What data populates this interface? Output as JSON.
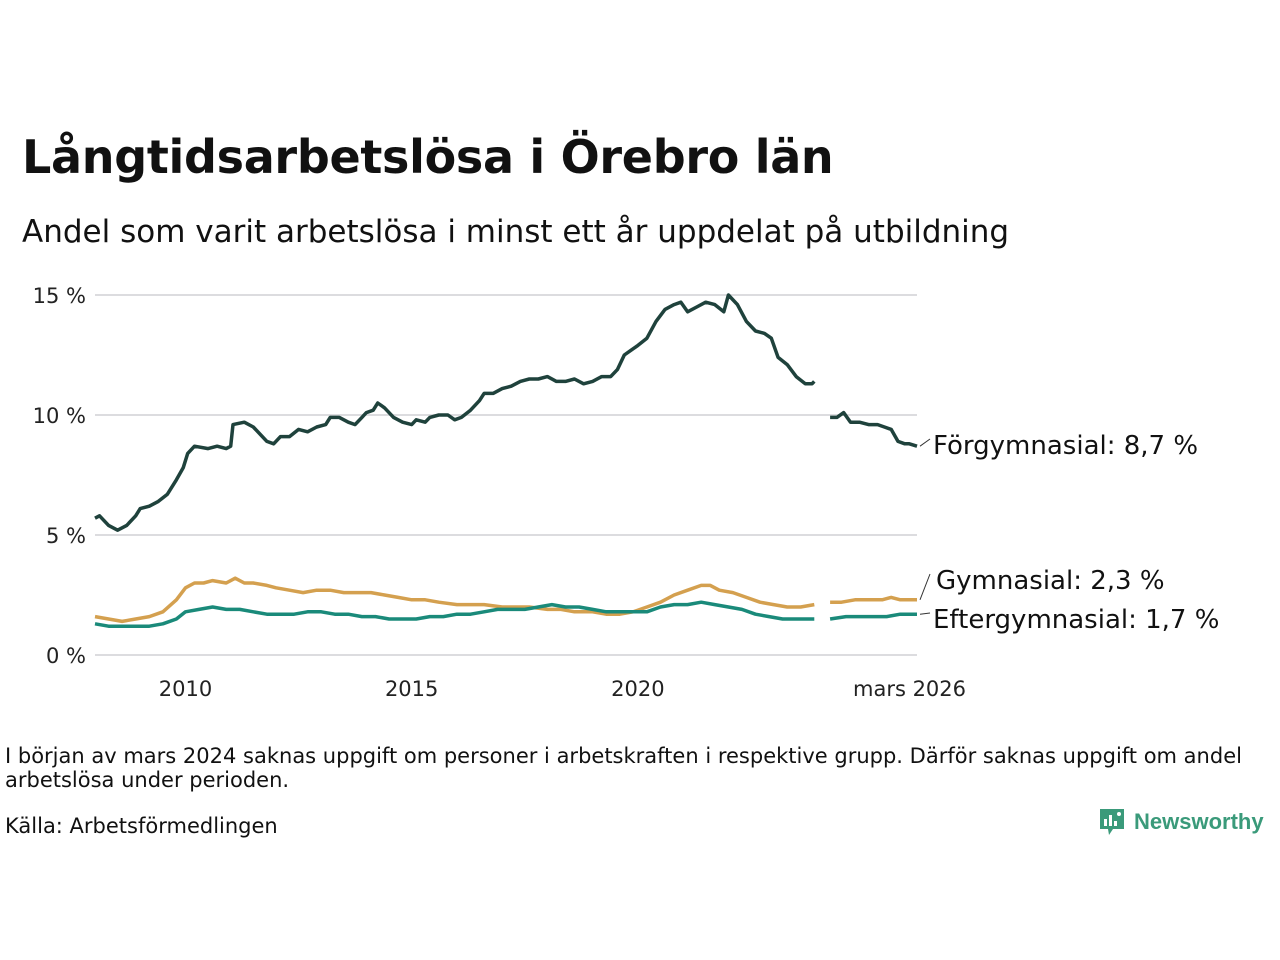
{
  "title": "Långtidsarbetslösa i Örebro län",
  "subtitle": "Andel som varit arbetslösa i minst ett år uppdelat på utbildning",
  "note": "I början av mars 2024 saknas uppgift om personer i arbetskraften i respektive grupp. Därför saknas uppgift om andel arbetslösa under perioden.",
  "source": "Källa: Arbetsförmedlingen",
  "brand": "Newsworthy",
  "chart_data": {
    "type": "line",
    "title": "Långtidsarbetslösa i Örebro län",
    "xlabel": "",
    "ylabel": "",
    "ylim": [
      0,
      15
    ],
    "xlim": [
      2008.0,
      2026.17
    ],
    "yticks": [
      0,
      5,
      10,
      15
    ],
    "ytick_labels": [
      "0 %",
      "5 %",
      "10 %",
      "15 %"
    ],
    "xticks": [
      2010,
      2015,
      2020,
      2026.17
    ],
    "xtick_labels": [
      "2010",
      "2015",
      "2020",
      "mars 2026"
    ],
    "grid": true,
    "gap": [
      2023.9,
      2024.25
    ],
    "series": [
      {
        "name": "Förgymnasial",
        "label": "Förgymnasial: 8,7 %",
        "color": "#1f423c",
        "points": [
          [
            2008.0,
            5.7
          ],
          [
            2008.1,
            5.8
          ],
          [
            2008.3,
            5.4
          ],
          [
            2008.5,
            5.2
          ],
          [
            2008.7,
            5.4
          ],
          [
            2008.9,
            5.8
          ],
          [
            2009.0,
            6.1
          ],
          [
            2009.2,
            6.2
          ],
          [
            2009.4,
            6.4
          ],
          [
            2009.6,
            6.7
          ],
          [
            2009.8,
            7.3
          ],
          [
            2009.95,
            7.8
          ],
          [
            2010.05,
            8.4
          ],
          [
            2010.2,
            8.7
          ],
          [
            2010.5,
            8.6
          ],
          [
            2010.7,
            8.7
          ],
          [
            2010.9,
            8.6
          ],
          [
            2011.0,
            8.7
          ],
          [
            2011.05,
            9.6
          ],
          [
            2011.3,
            9.7
          ],
          [
            2011.5,
            9.5
          ],
          [
            2011.8,
            8.9
          ],
          [
            2011.95,
            8.8
          ],
          [
            2012.1,
            9.1
          ],
          [
            2012.3,
            9.1
          ],
          [
            2012.5,
            9.4
          ],
          [
            2012.7,
            9.3
          ],
          [
            2012.9,
            9.5
          ],
          [
            2013.1,
            9.6
          ],
          [
            2013.2,
            9.9
          ],
          [
            2013.4,
            9.9
          ],
          [
            2013.6,
            9.7
          ],
          [
            2013.75,
            9.6
          ],
          [
            2013.9,
            9.9
          ],
          [
            2014.0,
            10.1
          ],
          [
            2014.15,
            10.2
          ],
          [
            2014.25,
            10.5
          ],
          [
            2014.4,
            10.3
          ],
          [
            2014.6,
            9.9
          ],
          [
            2014.8,
            9.7
          ],
          [
            2015.0,
            9.6
          ],
          [
            2015.1,
            9.8
          ],
          [
            2015.3,
            9.7
          ],
          [
            2015.4,
            9.9
          ],
          [
            2015.6,
            10.0
          ],
          [
            2015.8,
            10.0
          ],
          [
            2015.95,
            9.8
          ],
          [
            2016.1,
            9.9
          ],
          [
            2016.3,
            10.2
          ],
          [
            2016.5,
            10.6
          ],
          [
            2016.6,
            10.9
          ],
          [
            2016.8,
            10.9
          ],
          [
            2017.0,
            11.1
          ],
          [
            2017.2,
            11.2
          ],
          [
            2017.4,
            11.4
          ],
          [
            2017.6,
            11.5
          ],
          [
            2017.8,
            11.5
          ],
          [
            2018.0,
            11.6
          ],
          [
            2018.2,
            11.4
          ],
          [
            2018.4,
            11.4
          ],
          [
            2018.6,
            11.5
          ],
          [
            2018.8,
            11.3
          ],
          [
            2019.0,
            11.4
          ],
          [
            2019.2,
            11.6
          ],
          [
            2019.4,
            11.6
          ],
          [
            2019.55,
            11.9
          ],
          [
            2019.7,
            12.5
          ],
          [
            2019.85,
            12.7
          ],
          [
            2020.0,
            12.9
          ],
          [
            2020.2,
            13.2
          ],
          [
            2020.4,
            13.9
          ],
          [
            2020.6,
            14.4
          ],
          [
            2020.8,
            14.6
          ],
          [
            2020.95,
            14.7
          ],
          [
            2021.1,
            14.3
          ],
          [
            2021.3,
            14.5
          ],
          [
            2021.5,
            14.7
          ],
          [
            2021.7,
            14.6
          ],
          [
            2021.9,
            14.3
          ],
          [
            2022.0,
            15.0
          ],
          [
            2022.2,
            14.6
          ],
          [
            2022.4,
            13.9
          ],
          [
            2022.6,
            13.5
          ],
          [
            2022.8,
            13.4
          ],
          [
            2022.95,
            13.2
          ],
          [
            2023.1,
            12.4
          ],
          [
            2023.3,
            12.1
          ],
          [
            2023.5,
            11.6
          ],
          [
            2023.7,
            11.3
          ],
          [
            2023.85,
            11.3
          ],
          [
            2023.9,
            11.4
          ],
          [
            null,
            null
          ],
          [
            2024.25,
            9.9
          ],
          [
            2024.4,
            9.9
          ],
          [
            2024.55,
            10.1
          ],
          [
            2024.7,
            9.7
          ],
          [
            2024.9,
            9.7
          ],
          [
            2025.1,
            9.6
          ],
          [
            2025.3,
            9.6
          ],
          [
            2025.45,
            9.5
          ],
          [
            2025.6,
            9.4
          ],
          [
            2025.75,
            8.9
          ],
          [
            2025.9,
            8.8
          ],
          [
            2026.0,
            8.8
          ],
          [
            2026.17,
            8.7
          ]
        ]
      },
      {
        "name": "Gymnasial",
        "label": "Gymnasial: 2,3 %",
        "color": "#d4a04f",
        "points": [
          [
            2008.0,
            1.6
          ],
          [
            2008.3,
            1.5
          ],
          [
            2008.6,
            1.4
          ],
          [
            2008.9,
            1.5
          ],
          [
            2009.2,
            1.6
          ],
          [
            2009.5,
            1.8
          ],
          [
            2009.8,
            2.3
          ],
          [
            2010.0,
            2.8
          ],
          [
            2010.2,
            3.0
          ],
          [
            2010.4,
            3.0
          ],
          [
            2010.6,
            3.1
          ],
          [
            2010.9,
            3.0
          ],
          [
            2011.1,
            3.2
          ],
          [
            2011.3,
            3.0
          ],
          [
            2011.5,
            3.0
          ],
          [
            2011.8,
            2.9
          ],
          [
            2012.0,
            2.8
          ],
          [
            2012.3,
            2.7
          ],
          [
            2012.6,
            2.6
          ],
          [
            2012.9,
            2.7
          ],
          [
            2013.2,
            2.7
          ],
          [
            2013.5,
            2.6
          ],
          [
            2013.8,
            2.6
          ],
          [
            2014.1,
            2.6
          ],
          [
            2014.4,
            2.5
          ],
          [
            2014.7,
            2.4
          ],
          [
            2015.0,
            2.3
          ],
          [
            2015.3,
            2.3
          ],
          [
            2015.6,
            2.2
          ],
          [
            2016.0,
            2.1
          ],
          [
            2016.3,
            2.1
          ],
          [
            2016.6,
            2.1
          ],
          [
            2017.0,
            2.0
          ],
          [
            2017.3,
            2.0
          ],
          [
            2017.6,
            2.0
          ],
          [
            2018.0,
            1.9
          ],
          [
            2018.3,
            1.9
          ],
          [
            2018.6,
            1.8
          ],
          [
            2019.0,
            1.8
          ],
          [
            2019.3,
            1.7
          ],
          [
            2019.6,
            1.7
          ],
          [
            2019.9,
            1.8
          ],
          [
            2020.2,
            2.0
          ],
          [
            2020.5,
            2.2
          ],
          [
            2020.8,
            2.5
          ],
          [
            2021.1,
            2.7
          ],
          [
            2021.4,
            2.9
          ],
          [
            2021.6,
            2.9
          ],
          [
            2021.8,
            2.7
          ],
          [
            2022.1,
            2.6
          ],
          [
            2022.4,
            2.4
          ],
          [
            2022.7,
            2.2
          ],
          [
            2023.0,
            2.1
          ],
          [
            2023.3,
            2.0
          ],
          [
            2023.6,
            2.0
          ],
          [
            2023.9,
            2.1
          ],
          [
            null,
            null
          ],
          [
            2024.25,
            2.2
          ],
          [
            2024.5,
            2.2
          ],
          [
            2024.8,
            2.3
          ],
          [
            2025.1,
            2.3
          ],
          [
            2025.4,
            2.3
          ],
          [
            2025.6,
            2.4
          ],
          [
            2025.8,
            2.3
          ],
          [
            2026.0,
            2.3
          ],
          [
            2026.17,
            2.3
          ]
        ]
      },
      {
        "name": "Eftergymnasial",
        "label": "Eftergymnasial: 1,7 %",
        "color": "#1a8a7a",
        "points": [
          [
            2008.0,
            1.3
          ],
          [
            2008.3,
            1.2
          ],
          [
            2008.6,
            1.2
          ],
          [
            2008.9,
            1.2
          ],
          [
            2009.2,
            1.2
          ],
          [
            2009.5,
            1.3
          ],
          [
            2009.8,
            1.5
          ],
          [
            2010.0,
            1.8
          ],
          [
            2010.3,
            1.9
          ],
          [
            2010.6,
            2.0
          ],
          [
            2010.9,
            1.9
          ],
          [
            2011.2,
            1.9
          ],
          [
            2011.5,
            1.8
          ],
          [
            2011.8,
            1.7
          ],
          [
            2012.1,
            1.7
          ],
          [
            2012.4,
            1.7
          ],
          [
            2012.7,
            1.8
          ],
          [
            2013.0,
            1.8
          ],
          [
            2013.3,
            1.7
          ],
          [
            2013.6,
            1.7
          ],
          [
            2013.9,
            1.6
          ],
          [
            2014.2,
            1.6
          ],
          [
            2014.5,
            1.5
          ],
          [
            2014.8,
            1.5
          ],
          [
            2015.1,
            1.5
          ],
          [
            2015.4,
            1.6
          ],
          [
            2015.7,
            1.6
          ],
          [
            2016.0,
            1.7
          ],
          [
            2016.3,
            1.7
          ],
          [
            2016.6,
            1.8
          ],
          [
            2016.9,
            1.9
          ],
          [
            2017.2,
            1.9
          ],
          [
            2017.5,
            1.9
          ],
          [
            2017.8,
            2.0
          ],
          [
            2018.1,
            2.1
          ],
          [
            2018.4,
            2.0
          ],
          [
            2018.7,
            2.0
          ],
          [
            2019.0,
            1.9
          ],
          [
            2019.3,
            1.8
          ],
          [
            2019.6,
            1.8
          ],
          [
            2019.9,
            1.8
          ],
          [
            2020.2,
            1.8
          ],
          [
            2020.5,
            2.0
          ],
          [
            2020.8,
            2.1
          ],
          [
            2021.1,
            2.1
          ],
          [
            2021.4,
            2.2
          ],
          [
            2021.7,
            2.1
          ],
          [
            2022.0,
            2.0
          ],
          [
            2022.3,
            1.9
          ],
          [
            2022.6,
            1.7
          ],
          [
            2022.9,
            1.6
          ],
          [
            2023.2,
            1.5
          ],
          [
            2023.5,
            1.5
          ],
          [
            2023.9,
            1.5
          ],
          [
            null,
            null
          ],
          [
            2024.25,
            1.5
          ],
          [
            2024.6,
            1.6
          ],
          [
            2024.9,
            1.6
          ],
          [
            2025.2,
            1.6
          ],
          [
            2025.5,
            1.6
          ],
          [
            2025.8,
            1.7
          ],
          [
            2026.17,
            1.7
          ]
        ]
      }
    ]
  }
}
